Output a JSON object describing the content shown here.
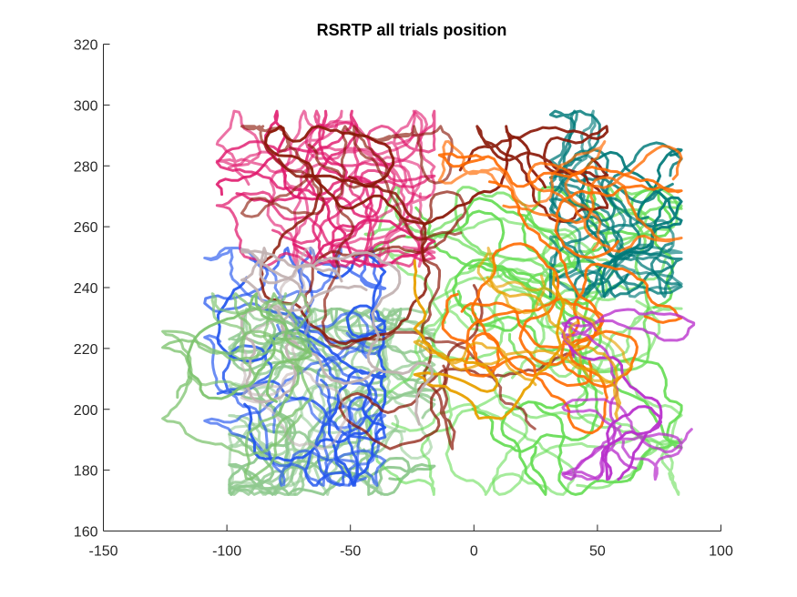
{
  "chart_data": {
    "type": "line",
    "title": "RSRTP all trials position",
    "xlabel": "",
    "ylabel": "",
    "xlim": [
      -150,
      100
    ],
    "ylim": [
      160,
      320
    ],
    "xticks": [
      -150,
      -100,
      -50,
      0,
      50,
      100
    ],
    "yticks": [
      160,
      180,
      200,
      220,
      240,
      260,
      280,
      300,
      320
    ],
    "xtick_labels": [
      "-150",
      "-100",
      "-50",
      "0",
      "50",
      "100"
    ],
    "ytick_labels": [
      "160",
      "180",
      "200",
      "220",
      "240",
      "260",
      "280",
      "300",
      "320"
    ],
    "grid": false,
    "legend": false,
    "trajectory_groups": [
      {
        "color": "#8fc98f",
        "region": {
          "x": [
            -95,
            -20
          ],
          "y": [
            175,
            230
          ]
        },
        "count": 14
      },
      {
        "color": "#66dd55",
        "region": {
          "x": [
            -40,
            80
          ],
          "y": [
            175,
            270
          ]
        },
        "count": 16
      },
      {
        "color": "#2255ee",
        "region": {
          "x": [
            -105,
            -40
          ],
          "y": [
            178,
            250
          ]
        },
        "count": 9
      },
      {
        "color": "#e0186c",
        "region": {
          "x": [
            -100,
            -20
          ],
          "y": [
            250,
            295
          ]
        },
        "count": 10
      },
      {
        "color": "#007a7a",
        "region": {
          "x": [
            35,
            80
          ],
          "y": [
            240,
            295
          ]
        },
        "count": 7
      },
      {
        "color": "#8b1a0a",
        "region": {
          "x": [
            -90,
            50
          ],
          "y": [
            190,
            290
          ]
        },
        "count": 8
      },
      {
        "color": "#ff6a00",
        "region": {
          "x": [
            -10,
            80
          ],
          "y": [
            175,
            285
          ]
        },
        "count": 6
      },
      {
        "color": "#b82ecc",
        "region": {
          "x": [
            40,
            85
          ],
          "y": [
            180,
            230
          ]
        },
        "count": 3
      },
      {
        "color": "#e8a000",
        "region": {
          "x": [
            -20,
            60
          ],
          "y": [
            200,
            250
          ]
        },
        "count": 3
      },
      {
        "color": "#c2b2b2",
        "region": {
          "x": [
            -90,
            -20
          ],
          "y": [
            190,
            250
          ]
        },
        "count": 3
      },
      {
        "color": "#7ec36f",
        "region": {
          "x": [
            -122,
            -70
          ],
          "y": [
            180,
            235
          ]
        },
        "count": 4
      }
    ]
  }
}
